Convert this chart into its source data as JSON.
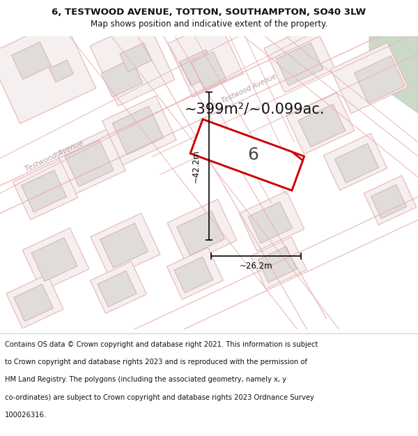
{
  "title_line1": "6, TESTWOOD AVENUE, TOTTON, SOUTHAMPTON, SO40 3LW",
  "title_line2": "Map shows position and indicative extent of the property.",
  "area_text": "~399m²/~0.099ac.",
  "property_number": "6",
  "dim_width": "~26.2m",
  "dim_height": "~42.2m",
  "street_label_main": "Testwood Avenue",
  "street_label_top": "Testwood Avenue",
  "footer_lines": [
    "Contains OS data © Crown copyright and database right 2021. This information is subject",
    "to Crown copyright and database rights 2023 and is reproduced with the permission of",
    "HM Land Registry. The polygons (including the associated geometry, namely x, y",
    "co-ordinates) are subject to Crown copyright and database rights 2023 Ordnance Survey",
    "100026316."
  ],
  "map_bg": "#f5f0ef",
  "building_fill": "#e0dcda",
  "building_edge": "#d4a8a8",
  "plot_fill": "#ffffff",
  "plot_edge": "#cc0000",
  "road_outline": "#e8b4b4",
  "dim_color": "#000000",
  "street_label_color": "#b0a0a0",
  "area_text_color": "#111111",
  "title_bg": "#ffffff",
  "footer_bg": "#ffffff",
  "text_color": "#111111",
  "green_fill": "#ccd8c8",
  "title_fontsize": 9.5,
  "subtitle_fontsize": 8.5,
  "area_fontsize": 15,
  "dim_fontsize": 8.5,
  "label_fontsize": 7.5,
  "footer_fontsize": 7.2,
  "number_fontsize": 18
}
